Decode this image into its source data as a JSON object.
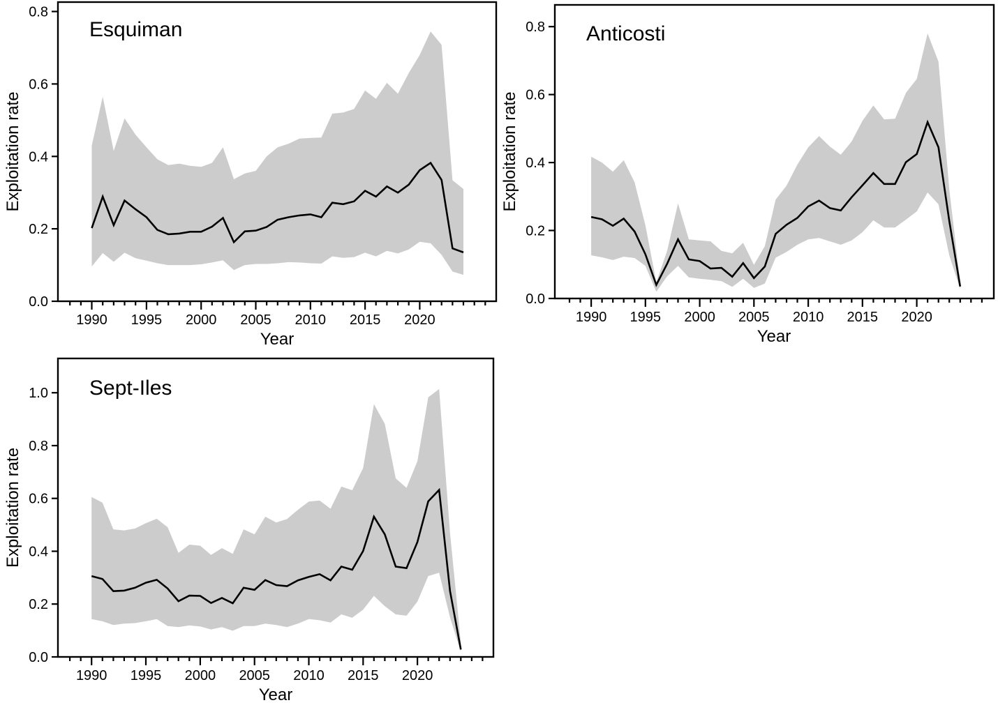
{
  "figure": {
    "background_color": "#ffffff",
    "line_color": "#000000",
    "band_color": "#cccccc",
    "frame_color": "#000000"
  },
  "chart_data": [
    {
      "id": "esquiman",
      "type": "line",
      "title": "Esquiman",
      "xlabel": "Year",
      "ylabel": "Exploitation rate",
      "legend_position": "none",
      "grid": false,
      "band_color": "#cccccc",
      "line_color": "#000000",
      "xlim": [
        1986.9,
        2027.0
      ],
      "ylim": [
        0,
        0.826
      ],
      "yticks": [
        0.0,
        0.2,
        0.4,
        0.6,
        0.8
      ],
      "ytick_labels": [
        "0.0",
        "0.2",
        "0.4",
        "0.6",
        "0.8"
      ],
      "xtick_major": [
        1990,
        1995,
        2000,
        2005,
        2010,
        2015,
        2020
      ],
      "xtick_minor_range": [
        1988,
        2026
      ],
      "years": [
        1990,
        1991,
        1992,
        1993,
        1994,
        1995,
        1996,
        1997,
        1998,
        1999,
        2000,
        2001,
        2002,
        2003,
        2004,
        2005,
        2006,
        2007,
        2008,
        2009,
        2010,
        2011,
        2012,
        2013,
        2014,
        2015,
        2016,
        2017,
        2018,
        2019,
        2020,
        2021,
        2022,
        2023,
        2024
      ],
      "median": [
        0.202,
        0.289,
        0.21,
        0.278,
        0.254,
        0.232,
        0.197,
        0.185,
        0.187,
        0.192,
        0.192,
        0.206,
        0.23,
        0.163,
        0.193,
        0.195,
        0.205,
        0.225,
        0.232,
        0.237,
        0.24,
        0.232,
        0.272,
        0.268,
        0.276,
        0.305,
        0.289,
        0.317,
        0.3,
        0.322,
        0.362,
        0.382,
        0.335,
        0.146,
        0.135
      ],
      "lower": [
        0.096,
        0.133,
        0.109,
        0.134,
        0.119,
        0.112,
        0.105,
        0.1,
        0.1,
        0.1,
        0.102,
        0.107,
        0.113,
        0.086,
        0.1,
        0.103,
        0.103,
        0.105,
        0.108,
        0.107,
        0.105,
        0.104,
        0.124,
        0.12,
        0.122,
        0.134,
        0.124,
        0.139,
        0.132,
        0.143,
        0.164,
        0.16,
        0.128,
        0.082,
        0.073
      ],
      "upper": [
        0.43,
        0.565,
        0.415,
        0.505,
        0.46,
        0.425,
        0.392,
        0.376,
        0.38,
        0.374,
        0.371,
        0.382,
        0.425,
        0.337,
        0.353,
        0.36,
        0.4,
        0.425,
        0.435,
        0.449,
        0.451,
        0.452,
        0.518,
        0.521,
        0.531,
        0.582,
        0.559,
        0.603,
        0.573,
        0.63,
        0.68,
        0.745,
        0.708,
        0.334,
        0.31
      ]
    },
    {
      "id": "anticosti",
      "type": "line",
      "title": "Anticosti",
      "xlabel": "Year",
      "ylabel": "Exploitation rate",
      "legend_position": "none",
      "grid": false,
      "band_color": "#cccccc",
      "line_color": "#000000",
      "xlim": [
        1986.65,
        2027.1
      ],
      "ylim": [
        0,
        0.864
      ],
      "yticks": [
        0.0,
        0.2,
        0.4,
        0.6,
        0.8
      ],
      "ytick_labels": [
        "0.0",
        "0.2",
        "0.4",
        "0.6",
        "0.8"
      ],
      "xtick_major": [
        1990,
        1995,
        2000,
        2005,
        2010,
        2015,
        2020
      ],
      "xtick_minor_range": [
        1988,
        2026
      ],
      "years": [
        1990,
        1991,
        1992,
        1993,
        1994,
        1995,
        1996,
        1997,
        1998,
        1999,
        2000,
        2001,
        2002,
        2003,
        2004,
        2005,
        2006,
        2007,
        2008,
        2009,
        2010,
        2011,
        2012,
        2013,
        2014,
        2015,
        2016,
        2017,
        2018,
        2019,
        2020,
        2021,
        2022,
        2023,
        2024
      ],
      "median": [
        0.24,
        0.233,
        0.214,
        0.235,
        0.197,
        0.13,
        0.04,
        0.102,
        0.174,
        0.115,
        0.11,
        0.088,
        0.09,
        0.064,
        0.104,
        0.06,
        0.094,
        0.19,
        0.217,
        0.237,
        0.271,
        0.288,
        0.266,
        0.259,
        0.298,
        0.333,
        0.369,
        0.337,
        0.337,
        0.401,
        0.425,
        0.519,
        0.445,
        0.228,
        0.035
      ],
      "lower": [
        0.127,
        0.121,
        0.113,
        0.123,
        0.119,
        0.096,
        0.02,
        0.065,
        0.096,
        0.062,
        0.058,
        0.055,
        0.051,
        0.034,
        0.058,
        0.031,
        0.044,
        0.12,
        0.137,
        0.158,
        0.174,
        0.178,
        0.168,
        0.158,
        0.171,
        0.195,
        0.23,
        0.209,
        0.209,
        0.232,
        0.256,
        0.312,
        0.277,
        0.127,
        0.028
      ],
      "upper": [
        0.417,
        0.4,
        0.373,
        0.407,
        0.342,
        0.215,
        0.048,
        0.14,
        0.28,
        0.174,
        0.171,
        0.168,
        0.14,
        0.133,
        0.164,
        0.099,
        0.154,
        0.291,
        0.332,
        0.394,
        0.445,
        0.478,
        0.447,
        0.423,
        0.462,
        0.523,
        0.568,
        0.527,
        0.529,
        0.605,
        0.646,
        0.78,
        0.697,
        0.321,
        0.048
      ]
    },
    {
      "id": "sept-iles",
      "type": "line",
      "title": "Sept-Iles",
      "xlabel": "Year",
      "ylabel": "Exploitation rate",
      "legend_position": "none",
      "grid": false,
      "band_color": "#cccccc",
      "line_color": "#000000",
      "xlim": [
        1986.9,
        2027.0
      ],
      "ylim": [
        0,
        1.13
      ],
      "yticks": [
        0.0,
        0.2,
        0.4,
        0.6,
        0.8,
        1.0
      ],
      "ytick_labels": [
        "0.0",
        "0.2",
        "0.4",
        "0.6",
        "0.8",
        "1.0"
      ],
      "xtick_major": [
        1990,
        1995,
        2000,
        2005,
        2010,
        2015,
        2020
      ],
      "xtick_minor_range": [
        1988,
        2026
      ],
      "years": [
        1990,
        1991,
        1992,
        1993,
        1994,
        1995,
        1996,
        1997,
        1998,
        1999,
        2000,
        2001,
        2002,
        2003,
        2004,
        2005,
        2006,
        2007,
        2008,
        2009,
        2010,
        2011,
        2012,
        2013,
        2014,
        2015,
        2016,
        2017,
        2018,
        2019,
        2020,
        2021,
        2022,
        2023,
        2024
      ],
      "median": [
        0.306,
        0.295,
        0.249,
        0.251,
        0.262,
        0.281,
        0.292,
        0.259,
        0.211,
        0.232,
        0.231,
        0.204,
        0.223,
        0.203,
        0.262,
        0.254,
        0.291,
        0.272,
        0.268,
        0.29,
        0.303,
        0.313,
        0.29,
        0.342,
        0.33,
        0.401,
        0.531,
        0.464,
        0.342,
        0.336,
        0.435,
        0.589,
        0.632,
        0.25,
        0.028
      ],
      "lower": [
        0.143,
        0.135,
        0.121,
        0.126,
        0.128,
        0.135,
        0.143,
        0.117,
        0.113,
        0.119,
        0.115,
        0.104,
        0.113,
        0.099,
        0.117,
        0.117,
        0.126,
        0.121,
        0.113,
        0.126,
        0.143,
        0.139,
        0.13,
        0.161,
        0.148,
        0.179,
        0.231,
        0.192,
        0.161,
        0.156,
        0.209,
        0.306,
        0.319,
        0.15,
        0.02
      ],
      "upper": [
        0.605,
        0.584,
        0.483,
        0.479,
        0.486,
        0.506,
        0.523,
        0.491,
        0.394,
        0.425,
        0.421,
        0.386,
        0.412,
        0.39,
        0.483,
        0.464,
        0.531,
        0.509,
        0.522,
        0.557,
        0.588,
        0.592,
        0.561,
        0.645,
        0.631,
        0.715,
        0.957,
        0.882,
        0.676,
        0.64,
        0.741,
        0.983,
        1.014,
        0.47,
        0.055
      ]
    }
  ]
}
